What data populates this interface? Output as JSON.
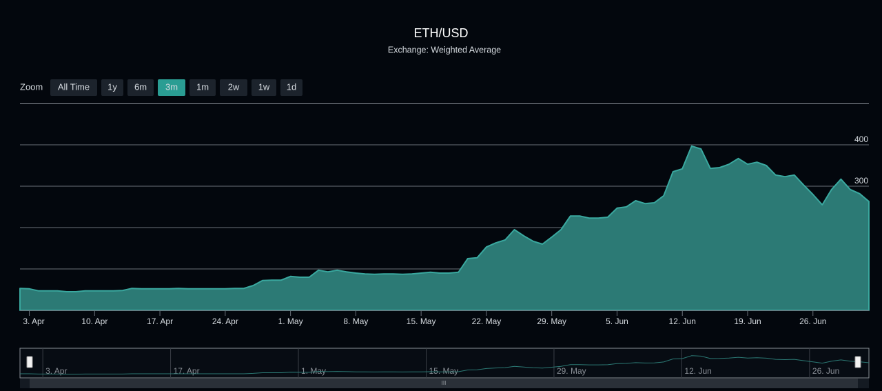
{
  "range_selector": {
    "label": "Zoom",
    "buttons": [
      "All Time",
      "1y",
      "6m",
      "3m",
      "1m",
      "2w",
      "1w",
      "1d"
    ],
    "selected": "3m"
  },
  "chart_data": {
    "type": "area",
    "title": "ETH/USD",
    "subtitle": "Exchange: Weighted Average",
    "x": [
      "2. Apr",
      "3. Apr",
      "4. Apr",
      "5. Apr",
      "6. Apr",
      "7. Apr",
      "8. Apr",
      "9. Apr",
      "10. Apr",
      "11. Apr",
      "12. Apr",
      "13. Apr",
      "14. Apr",
      "15. Apr",
      "16. Apr",
      "17. Apr",
      "18. Apr",
      "19. Apr",
      "20. Apr",
      "21. Apr",
      "22. Apr",
      "23. Apr",
      "24. Apr",
      "25. Apr",
      "26. Apr",
      "27. Apr",
      "28. Apr",
      "29. Apr",
      "30. Apr",
      "1. May",
      "2. May",
      "3. May",
      "4. May",
      "5. May",
      "6. May",
      "7. May",
      "8. May",
      "9. May",
      "10. May",
      "11. May",
      "12. May",
      "13. May",
      "14. May",
      "15. May",
      "16. May",
      "17. May",
      "18. May",
      "19. May",
      "20. May",
      "21. May",
      "22. May",
      "23. May",
      "24. May",
      "25. May",
      "26. May",
      "27. May",
      "28. May",
      "29. May",
      "30. May",
      "31. May",
      "1. Jun",
      "2. Jun",
      "3. Jun",
      "4. Jun",
      "5. Jun",
      "6. Jun",
      "7. Jun",
      "8. Jun",
      "9. Jun",
      "10. Jun",
      "11. Jun",
      "12. Jun",
      "13. Jun",
      "14. Jun",
      "15. Jun",
      "16. Jun",
      "17. Jun",
      "18. Jun",
      "19. Jun",
      "20. Jun",
      "21. Jun",
      "22. Jun",
      "23. Jun",
      "24. Jun",
      "25. Jun",
      "26. Jun",
      "27. Jun",
      "28. Jun",
      "29. Jun",
      "30. Jun",
      "1. Jul",
      "2. Jul"
    ],
    "values": [
      53,
      52,
      47,
      47,
      47,
      45,
      45,
      47,
      47,
      47,
      47,
      48,
      53,
      52,
      52,
      52,
      52,
      53,
      52,
      52,
      52,
      52,
      52,
      53,
      53,
      60,
      72,
      73,
      73,
      82,
      80,
      80,
      97,
      93,
      97,
      93,
      90,
      88,
      87,
      88,
      88,
      87,
      88,
      90,
      92,
      90,
      90,
      92,
      125,
      127,
      153,
      163,
      170,
      195,
      180,
      167,
      160,
      177,
      195,
      228,
      228,
      223,
      223,
      225,
      247,
      250,
      265,
      258,
      260,
      277,
      335,
      342,
      397,
      390,
      343,
      345,
      353,
      367,
      353,
      358,
      350,
      327,
      323,
      327,
      303,
      280,
      255,
      292,
      317,
      292,
      282,
      263
    ],
    "color": "#2c7a75",
    "ylim": [
      0,
      500
    ],
    "yticks": [
      0,
      100,
      200,
      300,
      400
    ],
    "grid": true,
    "xticks": [
      "3. Apr",
      "10. Apr",
      "17. Apr",
      "24. Apr",
      "1. May",
      "8. May",
      "15. May",
      "22. May",
      "29. May",
      "5. Jun",
      "12. Jun",
      "19. Jun",
      "26. Jun"
    ],
    "navigator": {
      "xticks": [
        "3. Apr",
        "17. Apr",
        "1. May",
        "15. May",
        "29. May",
        "12. Jun",
        "26. Jun"
      ]
    }
  }
}
